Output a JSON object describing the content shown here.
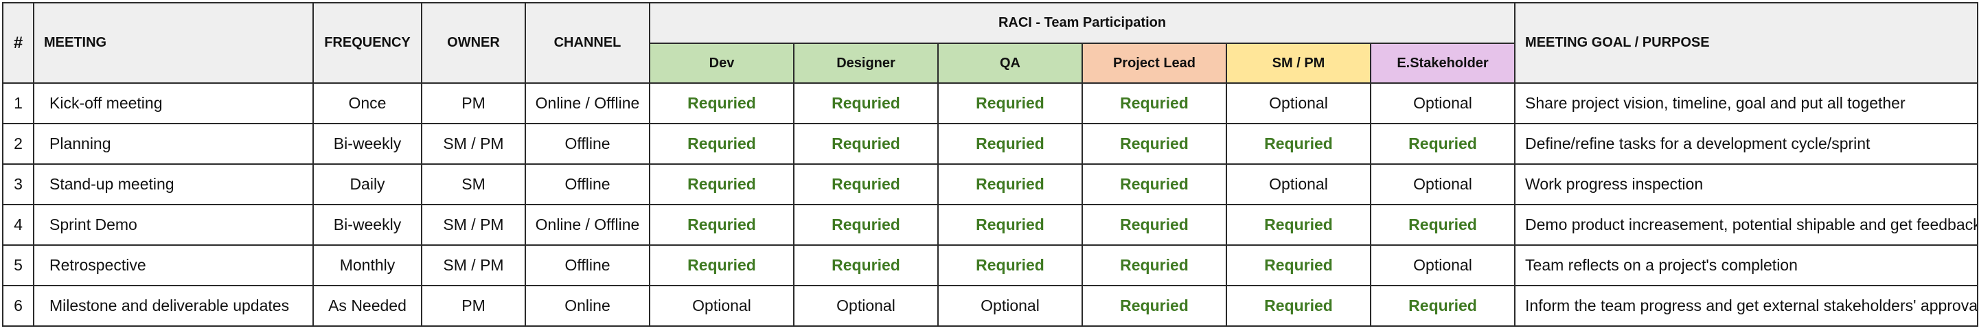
{
  "header": {
    "num": "#",
    "meeting": "MEETING",
    "frequency": "FREQUENCY",
    "owner": "OWNER",
    "channel": "CHANNEL",
    "raci_title": "RACI - Team Participation",
    "goal": "MEETING GOAL / PURPOSE"
  },
  "roles": [
    {
      "label": "Dev",
      "color": "#c5e0b4"
    },
    {
      "label": "Designer",
      "color": "#c5e0b4"
    },
    {
      "label": "QA",
      "color": "#c5e0b4"
    },
    {
      "label": "Project Lead",
      "color": "#f8cbad"
    },
    {
      "label": "SM / PM",
      "color": "#ffe699"
    },
    {
      "label": "E.Stakeholder",
      "color": "#e6c3ea"
    }
  ],
  "colors": {
    "required": "#3f7a22",
    "header_bg": "#efefef"
  },
  "rows": [
    {
      "num": "1",
      "meeting": "Kick-off meeting",
      "frequency": "Once",
      "owner": "PM",
      "channel": "Online / Offline",
      "raci": [
        "Requried",
        "Requried",
        "Requried",
        "Requried",
        "Optional",
        "Optional"
      ],
      "goal": "Share project vision, timeline, goal and put all together"
    },
    {
      "num": "2",
      "meeting": "Planning",
      "frequency": "Bi-weekly",
      "owner": "SM / PM",
      "channel": "Offline",
      "raci": [
        "Requried",
        "Requried",
        "Requried",
        "Requried",
        "Requried",
        "Requried"
      ],
      "goal": "Define/refine tasks for a development cycle/sprint"
    },
    {
      "num": "3",
      "meeting": "Stand-up meeting",
      "frequency": "Daily",
      "owner": "SM",
      "channel": "Offline",
      "raci": [
        "Requried",
        "Requried",
        "Requried",
        "Requried",
        "Optional",
        "Optional"
      ],
      "goal": "Work progress inspection"
    },
    {
      "num": "4",
      "meeting": "Sprint Demo",
      "frequency": "Bi-weekly",
      "owner": "SM / PM",
      "channel": "Online / Offline",
      "raci": [
        "Requried",
        "Requried",
        "Requried",
        "Requried",
        "Requried",
        "Requried"
      ],
      "goal": "Demo product increasement, potential shipable and get feedback"
    },
    {
      "num": "5",
      "meeting": "Retrospective",
      "frequency": "Monthly",
      "owner": "SM / PM",
      "channel": "Offline",
      "raci": [
        "Requried",
        "Requried",
        "Requried",
        "Requried",
        "Requried",
        "Optional"
      ],
      "goal": "Team reflects on a project's completion"
    },
    {
      "num": "6",
      "meeting": "Milestone and deliverable updates",
      "frequency": "As Needed",
      "owner": "PM",
      "channel": "Online",
      "raci": [
        "Optional",
        "Optional",
        "Optional",
        "Requried",
        "Requried",
        "Requried"
      ],
      "goal": "Inform the team progress and get external stakeholders' approval"
    }
  ]
}
